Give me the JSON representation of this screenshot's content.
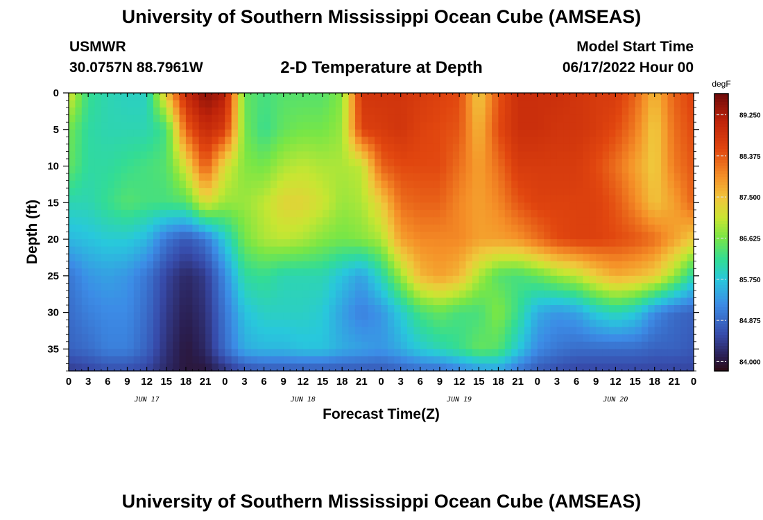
{
  "header": {
    "title": "University of Southern Mississippi Ocean Cube (AMSEAS)",
    "station": "USMWR",
    "coordinates": "30.0757N  88.7961W",
    "plot_title": "2-D Temperature at Depth",
    "model_start_label": "Model Start Time",
    "model_start_value": "06/17/2022 Hour 00"
  },
  "footer": {
    "title": "University of Southern Mississippi Ocean Cube (AMSEAS)"
  },
  "chart_data": {
    "type": "heatmap",
    "title": "2-D Temperature at Depth",
    "xlabel": "Forecast Time(Z)",
    "ylabel": "Depth (ft)",
    "x_unit": "hours since model start",
    "x_tick_labels": [
      "0",
      "3",
      "6",
      "9",
      "12",
      "15",
      "18",
      "21",
      "0",
      "3",
      "6",
      "9",
      "12",
      "15",
      "18",
      "21",
      "0",
      "3",
      "6",
      "9",
      "12",
      "15",
      "18",
      "21",
      "0",
      "3",
      "6",
      "9",
      "12",
      "15",
      "18",
      "21",
      "0"
    ],
    "date_labels": [
      {
        "label": "JUN 17",
        "hour": 12
      },
      {
        "label": "JUN 18",
        "hour": 36
      },
      {
        "label": "JUN 19",
        "hour": 60
      },
      {
        "label": "JUN 20",
        "hour": 84
      }
    ],
    "xlim": [
      0,
      96
    ],
    "y_ticks": [
      0,
      5,
      10,
      15,
      20,
      25,
      30,
      35
    ],
    "ylim": [
      0,
      38
    ],
    "colorbar": {
      "unit": "degF",
      "range": [
        83.8,
        89.7
      ],
      "tick_labels": [
        "89.250",
        "88.375",
        "87.500",
        "86.625",
        "85.750",
        "84.875",
        "84.000"
      ],
      "tick_values": [
        89.25,
        88.375,
        87.5,
        86.625,
        85.75,
        84.875,
        84.0
      ]
    },
    "field_grid": {
      "hours": [
        0,
        3,
        6,
        9,
        12,
        15,
        18,
        21,
        24,
        27,
        30,
        33,
        36,
        39,
        42,
        45,
        48,
        51,
        54,
        57,
        60,
        63,
        66,
        69,
        72,
        75,
        78,
        81,
        84,
        87,
        90,
        93,
        96
      ],
      "depths_ft": [
        0,
        5,
        10,
        15,
        20,
        25,
        30,
        35,
        38
      ],
      "temperature_degF": [
        [
          87.2,
          86.2,
          86.0,
          85.9,
          85.9,
          87.5,
          89.0,
          89.5,
          89.2,
          86.5,
          86.3,
          86.4,
          86.4,
          86.4,
          86.7,
          88.8,
          88.8,
          88.8,
          88.7,
          88.6,
          88.5,
          87.4,
          88.4,
          88.9,
          88.9,
          88.9,
          88.8,
          88.7,
          88.7,
          88.3,
          87.6,
          88.3,
          88.6
        ],
        [
          86.6,
          86.1,
          86.0,
          86.0,
          86.0,
          86.3,
          88.3,
          89.0,
          88.7,
          86.6,
          86.2,
          86.5,
          86.6,
          86.6,
          86.8,
          88.6,
          88.7,
          88.8,
          88.6,
          88.5,
          88.4,
          87.6,
          88.5,
          88.9,
          88.9,
          88.8,
          88.8,
          88.7,
          88.5,
          88.1,
          87.4,
          88.2,
          88.5
        ],
        [
          86.5,
          86.1,
          86.1,
          86.2,
          86.3,
          86.4,
          87.2,
          88.4,
          87.2,
          86.7,
          86.6,
          86.9,
          87.0,
          86.9,
          86.9,
          87.0,
          88.3,
          88.5,
          88.5,
          88.5,
          88.2,
          87.8,
          88.2,
          88.7,
          88.7,
          88.7,
          88.7,
          88.5,
          88.2,
          87.8,
          87.4,
          88.1,
          88.4
        ],
        [
          86.0,
          86.0,
          86.2,
          86.4,
          86.3,
          86.3,
          86.4,
          87.2,
          86.8,
          86.8,
          87.0,
          87.3,
          87.3,
          87.1,
          86.8,
          86.9,
          87.4,
          88.2,
          88.3,
          88.3,
          88.0,
          87.8,
          88.0,
          88.4,
          88.6,
          88.6,
          88.6,
          88.6,
          88.4,
          88.0,
          87.5,
          87.8,
          88.3
        ],
        [
          85.6,
          85.7,
          85.8,
          85.8,
          85.6,
          85.0,
          84.7,
          85.0,
          85.8,
          86.6,
          86.9,
          87.0,
          86.9,
          86.7,
          86.6,
          86.7,
          86.9,
          87.8,
          88.0,
          88.0,
          88.0,
          87.8,
          87.8,
          87.9,
          88.2,
          88.5,
          88.6,
          88.6,
          88.5,
          88.4,
          88.2,
          87.8,
          87.4
        ],
        [
          85.0,
          85.3,
          85.4,
          85.3,
          85.0,
          84.5,
          84.2,
          84.4,
          85.2,
          86.1,
          86.2,
          86.0,
          86.0,
          86.0,
          85.7,
          85.4,
          86.0,
          86.8,
          87.6,
          87.8,
          87.6,
          86.9,
          86.4,
          86.3,
          86.5,
          86.8,
          87.0,
          87.4,
          87.7,
          87.6,
          87.4,
          86.8,
          86.0
        ],
        [
          84.9,
          85.1,
          85.2,
          85.2,
          84.9,
          84.4,
          84.1,
          84.3,
          85.0,
          85.7,
          85.9,
          85.9,
          85.9,
          85.8,
          85.4,
          85.1,
          85.3,
          85.8,
          86.3,
          86.5,
          86.3,
          86.3,
          86.7,
          86.2,
          85.5,
          85.3,
          85.4,
          85.8,
          86.0,
          85.8,
          85.2,
          84.9,
          84.8
        ],
        [
          84.8,
          84.9,
          85.1,
          85.1,
          84.8,
          84.3,
          84.0,
          84.2,
          84.9,
          85.5,
          85.6,
          85.6,
          85.7,
          85.7,
          85.5,
          85.4,
          85.3,
          85.5,
          85.8,
          86.0,
          86.2,
          86.5,
          86.4,
          85.8,
          85.2,
          85.0,
          84.9,
          84.9,
          84.9,
          84.9,
          84.8,
          84.8,
          84.7
        ],
        [
          84.4,
          84.5,
          84.6,
          84.6,
          84.5,
          84.2,
          84.0,
          84.0,
          84.3,
          84.6,
          84.7,
          84.7,
          84.7,
          84.7,
          84.7,
          84.7,
          84.7,
          84.8,
          84.9,
          84.9,
          85.1,
          85.3,
          85.4,
          85.0,
          84.7,
          84.6,
          84.5,
          84.5,
          84.5,
          84.5,
          84.5,
          84.5,
          84.5
        ]
      ]
    }
  }
}
